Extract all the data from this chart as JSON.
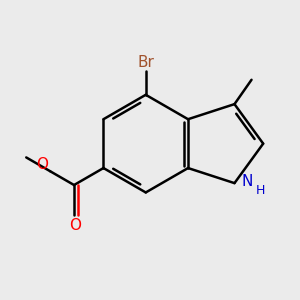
{
  "bg_color": "#ebebeb",
  "bond_color": "#000000",
  "bond_width": 1.8,
  "atom_colors": {
    "Br": "#a0522d",
    "N": "#0000cd",
    "O": "#ff0000",
    "C": "#000000"
  },
  "font_size": 11,
  "font_size_sub": 9
}
